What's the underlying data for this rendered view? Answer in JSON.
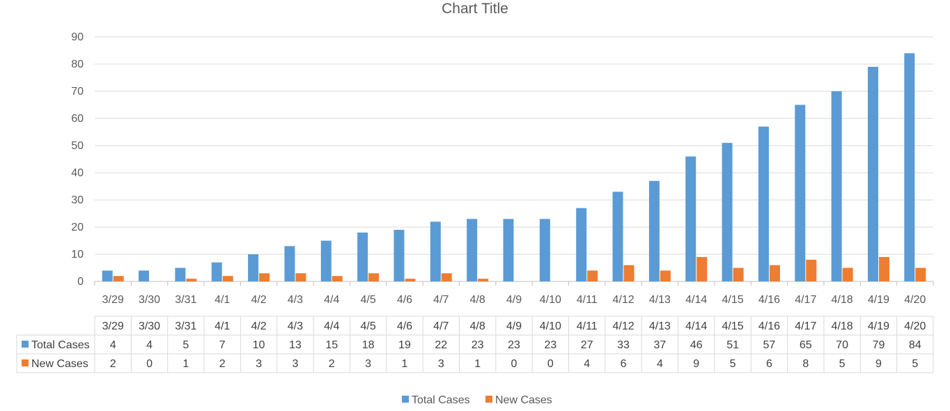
{
  "chart_data": {
    "type": "bar",
    "title": "Chart Title",
    "categories": [
      "3/29",
      "3/30",
      "3/31",
      "4/1",
      "4/2",
      "4/3",
      "4/4",
      "4/5",
      "4/6",
      "4/7",
      "4/8",
      "4/9",
      "4/10",
      "4/11",
      "4/12",
      "4/13",
      "4/14",
      "4/15",
      "4/16",
      "4/17",
      "4/18",
      "4/19",
      "4/20"
    ],
    "series": [
      {
        "name": "Total Cases",
        "color": "#5b9bd5",
        "values": [
          4,
          4,
          5,
          7,
          10,
          13,
          15,
          18,
          19,
          22,
          23,
          23,
          23,
          27,
          33,
          37,
          46,
          51,
          57,
          65,
          70,
          79,
          84
        ]
      },
      {
        "name": "New Cases",
        "color": "#ed7d31",
        "values": [
          2,
          0,
          1,
          2,
          3,
          3,
          2,
          3,
          1,
          3,
          1,
          0,
          0,
          4,
          6,
          4,
          9,
          5,
          6,
          8,
          5,
          9,
          5
        ]
      }
    ],
    "ylim": [
      0,
      90
    ],
    "yticks": [
      0,
      10,
      20,
      30,
      40,
      50,
      60,
      70,
      80,
      90
    ],
    "grid": true,
    "legend": "bottom",
    "data_table": true
  }
}
